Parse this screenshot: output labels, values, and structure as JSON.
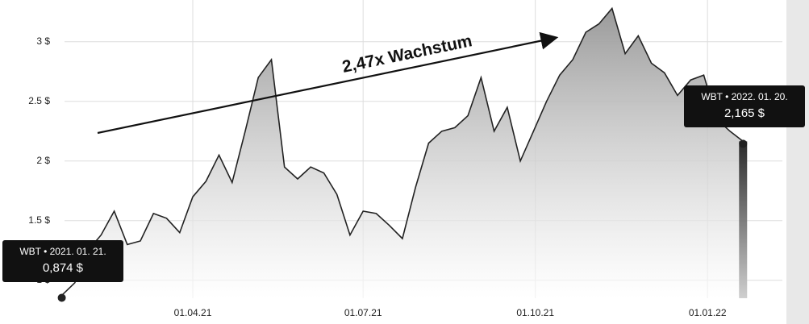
{
  "chart_data": {
    "type": "area",
    "annotation": "2,47x Wachstum",
    "x": [
      "2021-01-21",
      "2021-01-28",
      "2021-02-04",
      "2021-02-11",
      "2021-02-18",
      "2021-02-25",
      "2021-03-04",
      "2021-03-11",
      "2021-03-18",
      "2021-03-25",
      "2021-04-01",
      "2021-04-08",
      "2021-04-15",
      "2021-04-22",
      "2021-04-29",
      "2021-05-06",
      "2021-05-13",
      "2021-05-20",
      "2021-05-27",
      "2021-06-03",
      "2021-06-10",
      "2021-06-17",
      "2021-06-24",
      "2021-07-01",
      "2021-07-08",
      "2021-07-15",
      "2021-07-22",
      "2021-07-29",
      "2021-08-05",
      "2021-08-12",
      "2021-08-19",
      "2021-08-26",
      "2021-09-02",
      "2021-09-09",
      "2021-09-16",
      "2021-09-23",
      "2021-09-30",
      "2021-10-07",
      "2021-10-14",
      "2021-10-21",
      "2021-10-28",
      "2021-11-04",
      "2021-11-11",
      "2021-11-18",
      "2021-11-25",
      "2021-12-02",
      "2021-12-09",
      "2021-12-16",
      "2021-12-23",
      "2021-12-30",
      "2022-01-06",
      "2022-01-13",
      "2022-01-20"
    ],
    "series": [
      {
        "name": "WBT",
        "color": "#222222",
        "values": [
          0.874,
          0.98,
          1.25,
          1.38,
          1.58,
          1.3,
          1.33,
          1.56,
          1.52,
          1.4,
          1.7,
          1.83,
          2.05,
          1.82,
          2.25,
          2.7,
          2.85,
          1.95,
          1.85,
          1.95,
          1.9,
          1.72,
          1.38,
          1.58,
          1.56,
          1.46,
          1.35,
          1.78,
          2.15,
          2.25,
          2.28,
          2.38,
          2.7,
          2.25,
          2.45,
          2.0,
          2.25,
          2.5,
          2.72,
          2.85,
          3.08,
          3.15,
          3.28,
          2.9,
          3.05,
          2.82,
          2.74,
          2.55,
          2.68,
          2.72,
          2.35,
          2.25,
          2.165
        ]
      }
    ],
    "tooltips": [
      {
        "label": "WBT • 2021. 01. 21.",
        "value_label": "0,874 $"
      },
      {
        "label": "WBT • 2022. 01. 20.",
        "value_label": "2,165 $"
      }
    ],
    "xlim": [
      "2020-12-19",
      "2022-02-10"
    ],
    "xticks": [
      {
        "value": "2021-04-01",
        "label": "01.04.21"
      },
      {
        "value": "2021-07-01",
        "label": "01.07.21"
      },
      {
        "value": "2021-10-01",
        "label": "01.10.21"
      },
      {
        "value": "2022-01-01",
        "label": "01.01.22"
      }
    ],
    "ylim": [
      0.85,
      3.35
    ],
    "yticks": [
      {
        "value": 1,
        "label": "1 $"
      },
      {
        "value": 1.5,
        "label": "1.5 $"
      },
      {
        "value": 2,
        "label": "2 $"
      },
      {
        "value": 2.5,
        "label": "2.5 $"
      },
      {
        "value": 3,
        "label": "3 $"
      }
    ],
    "grid": true
  }
}
